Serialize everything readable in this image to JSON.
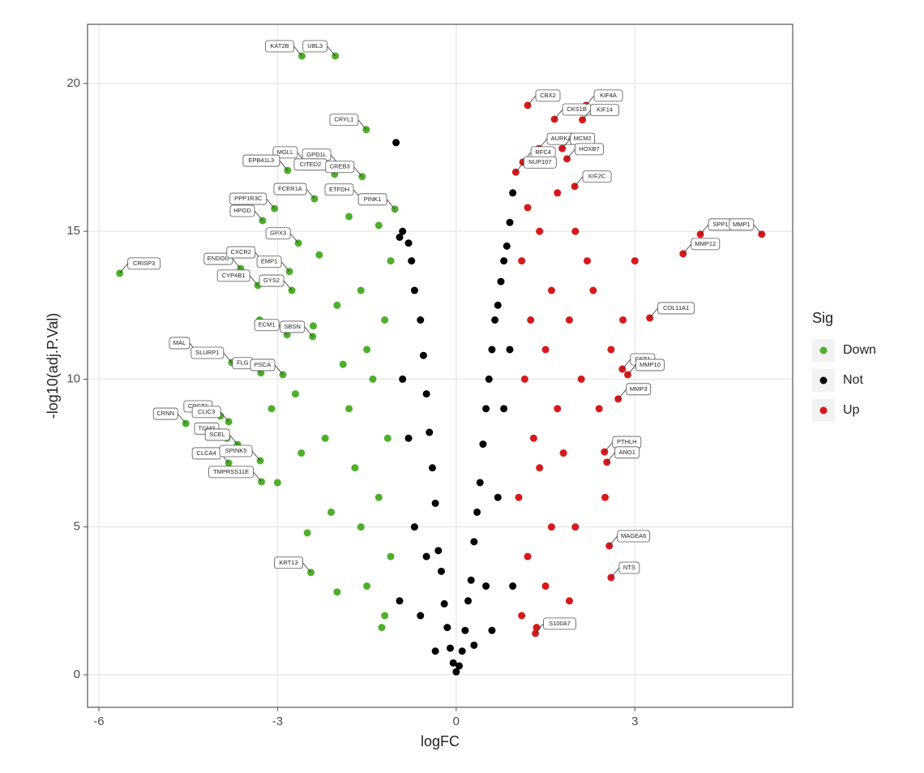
{
  "chart_data": {
    "type": "scatter",
    "x_label": "logFC",
    "y_label": "-log10(adj.P.Val)",
    "legend_title": "Sig",
    "legend": "right",
    "grid": true,
    "xlim": [
      -6.19,
      5.65
    ],
    "ylim": [
      -1.1,
      22
    ],
    "xticks": [
      -6,
      -3,
      0,
      3
    ],
    "yticks": [
      0,
      5,
      10,
      15,
      20
    ],
    "series": [
      {
        "name": "Down",
        "color": "#4daf2a",
        "labels": [
          "KAT2B",
          "UBL3",
          "CRYL1",
          "MGLL",
          "GPD1L",
          "EPB41L3",
          "CITED2",
          "CREB3",
          "PPP1R3C",
          "ETFDH",
          "FCER1A",
          "HPGD",
          "PINK1",
          "ENDOU",
          "CXCR2",
          "GPX3",
          "EMP1",
          "CRISP3",
          "CYP4B1",
          "GYS2",
          "ECM1",
          "SBSN",
          "MAL",
          "SLURP1",
          "FLG",
          "PSCA",
          "CRCT1",
          "CLIC3",
          "CRNN",
          "TGM3",
          "SCEL",
          "CLCA4",
          "SPINK5",
          "TMPRSS11E",
          "KRT13",
          null,
          null,
          null,
          null,
          null,
          null,
          null,
          null,
          null,
          null,
          null,
          null,
          null,
          null,
          null,
          null,
          null,
          null,
          null,
          null,
          null,
          null,
          null,
          null,
          null,
          null,
          null,
          null,
          null,
          null
        ],
        "x": [
          -2.59,
          -2.03,
          -1.51,
          -2.53,
          -1.97,
          -2.83,
          -2.04,
          -1.58,
          -3.05,
          -1.59,
          -2.38,
          -3.25,
          -1.03,
          -3.62,
          -3.24,
          -2.65,
          -2.8,
          -5.65,
          -3.33,
          -2.76,
          -2.84,
          -2.41,
          -4.34,
          -3.77,
          -3.28,
          -2.91,
          -3.96,
          -3.82,
          -4.54,
          -3.85,
          -3.67,
          -3.82,
          -3.29,
          -3.27,
          -2.44,
          -1.2,
          -1.1,
          -1.3,
          -1.15,
          -1.4,
          -1.2,
          -1.1,
          -1.5,
          -1.6,
          -1.7,
          -1.8,
          -1.5,
          -1.6,
          -1.3,
          -2.0,
          -2.1,
          -2.2,
          -1.9,
          -2.0,
          -2.3,
          -2.5,
          -2.6,
          -2.7,
          -2.4,
          -3.0,
          -3.1,
          -3.3,
          -1.25,
          -1.45,
          -1.8
        ],
        "values": [
          20.93,
          20.93,
          18.44,
          17.34,
          17.26,
          17.06,
          16.93,
          16.85,
          15.77,
          16.08,
          16.1,
          15.36,
          15.75,
          13.74,
          13.96,
          14.6,
          13.64,
          13.58,
          13.17,
          13.0,
          11.5,
          11.44,
          10.89,
          10.56,
          10.21,
          10.15,
          8.75,
          8.56,
          8.5,
          8.0,
          7.79,
          7.16,
          7.24,
          6.53,
          3.46,
          2,
          4,
          6,
          8,
          10,
          12,
          14,
          3,
          5,
          7,
          9,
          11,
          13,
          15.2,
          2.8,
          5.5,
          8,
          10.5,
          12.5,
          14.2,
          4.8,
          7.5,
          9.5,
          11.8,
          6.5,
          9,
          12,
          1.6,
          16,
          15.5
        ]
      },
      {
        "name": "Not",
        "color": "#000000",
        "x": [
          0,
          0.05,
          -0.05,
          0.1,
          -0.1,
          0.15,
          -0.15,
          0.2,
          -0.2,
          0.25,
          -0.25,
          0.3,
          -0.3,
          0.35,
          -0.35,
          0.4,
          -0.4,
          0.45,
          -0.45,
          0.5,
          -0.5,
          0.55,
          -0.55,
          0.6,
          -0.6,
          0.65,
          -0.7,
          0.7,
          0.75,
          -0.75,
          0.8,
          -0.8,
          0.85,
          -0.9,
          0.9,
          0.95,
          -0.95,
          0.5,
          -0.5,
          0.7,
          -0.7,
          0.8,
          -0.8,
          0.9,
          -0.9,
          0.6,
          -0.6,
          0.95,
          -0.95,
          0.3,
          -0.35,
          -1.01
        ],
        "values": [
          0.1,
          0.3,
          0.4,
          0.8,
          0.9,
          1.5,
          1.6,
          2.5,
          2.4,
          3.2,
          3.5,
          4.5,
          4.2,
          5.5,
          5.8,
          6.5,
          7,
          7.8,
          8.2,
          9,
          9.5,
          10,
          10.8,
          11,
          12,
          12,
          13,
          12.5,
          13.3,
          14,
          14,
          14.6,
          14.5,
          15,
          15.3,
          16.3,
          14.8,
          3,
          4,
          6,
          5,
          9,
          8,
          11,
          10,
          1.5,
          2,
          3,
          2.5,
          1,
          0.8,
          18
        ]
      },
      {
        "name": "Up",
        "color": "#d7191c",
        "labels": [
          "CBX2",
          "CKS1B",
          "KIF4A",
          "KIF14",
          "AURKA",
          "MCM2",
          "RFC4",
          "NUP107",
          "HOXB7",
          "KIF2C",
          "SPP1",
          "MMP1",
          "MMP12",
          "COL11A1",
          "CST1",
          "MMP10",
          "MMP3",
          "PTHLH",
          "ANO1",
          "MAGEA6",
          "NTS",
          "S100A7",
          null,
          null,
          null,
          null,
          null,
          null,
          null,
          null,
          null,
          null,
          null,
          null,
          null,
          null,
          null,
          null,
          null,
          null,
          null,
          null,
          null,
          null,
          null,
          null,
          null,
          null,
          null,
          null,
          null,
          null
        ],
        "x": [
          1.2,
          1.65,
          2.18,
          2.12,
          1.39,
          1.78,
          1.12,
          1.0,
          1.86,
          1.99,
          4.1,
          5.13,
          3.81,
          3.25,
          2.79,
          2.88,
          2.72,
          2.49,
          2.53,
          2.57,
          2.6,
          1.33,
          1.1,
          1.2,
          1.05,
          1.3,
          1.15,
          1.25,
          1.1,
          1.5,
          1.6,
          1.4,
          1.7,
          1.5,
          1.6,
          1.4,
          1.9,
          2.0,
          1.8,
          2.1,
          1.9,
          2.2,
          2.5,
          2.4,
          2.6,
          2.3,
          1.7,
          3.0,
          1.2,
          2.8,
          1.35,
          2.0
        ],
        "values": [
          19.26,
          18.79,
          19.26,
          18.77,
          17.8,
          17.8,
          17.34,
          17.0,
          17.45,
          16.52,
          14.9,
          14.9,
          14.24,
          12.07,
          10.34,
          10.15,
          9.33,
          7.54,
          7.19,
          4.36,
          3.29,
          1.4,
          2,
          4,
          6,
          8,
          10,
          12,
          14,
          3,
          5,
          7,
          9,
          11,
          13,
          15,
          2.5,
          5,
          7.5,
          10,
          12,
          14,
          6,
          9,
          11,
          13,
          16.3,
          14,
          15.8,
          12,
          1.6,
          15
        ]
      }
    ]
  }
}
